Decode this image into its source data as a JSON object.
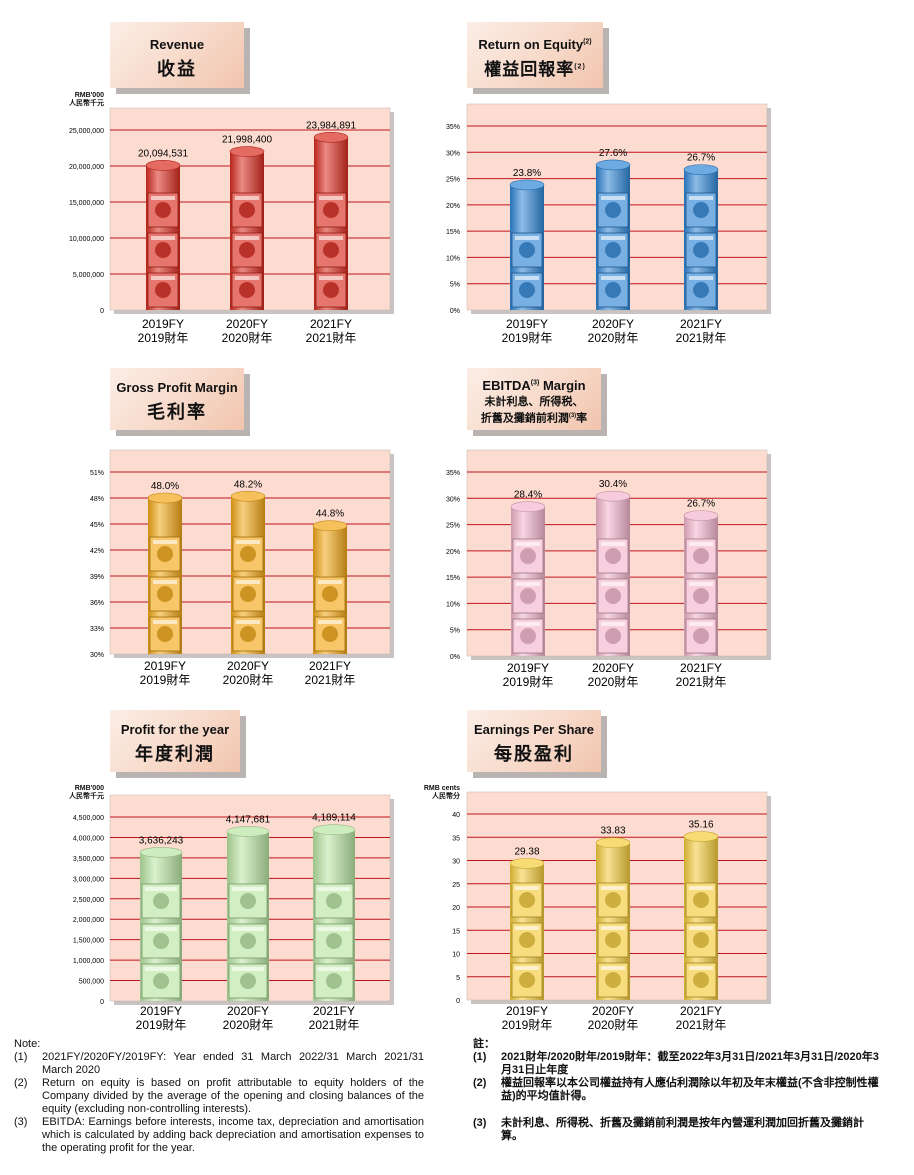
{
  "charts": [
    {
      "key": "revenue",
      "title_en": "Revenue",
      "title_zh": "收益",
      "unit": [
        "RMB'000",
        "人民幣千元"
      ],
      "y_tick_labels": [
        "0",
        "5,000,000",
        "10,000,000",
        "15,000,000",
        "20,000,000",
        "25,000,000"
      ],
      "value_labels": [
        "20,094,531",
        "21,998,400",
        "23,984,891"
      ],
      "cylinder_color": "#d92b1f",
      "product_icon": "candy-box-icon"
    },
    {
      "key": "roe",
      "title_en": "Return on Equity",
      "title_en_sup": "(2)",
      "title_zh": "權益回報率",
      "title_zh_sup": "(2)",
      "y_tick_labels": [
        "0%",
        "5%",
        "10%",
        "15%",
        "20%",
        "25%",
        "30%",
        "35%"
      ],
      "value_labels": [
        "23.8%",
        "27.6%",
        "26.7%"
      ],
      "cylinder_color": "#2f86d6",
      "product_icon": "snack-bag-icon"
    },
    {
      "key": "gpm",
      "title_en": "Gross Profit Margin",
      "title_zh": "毛利率",
      "y_tick_labels": [
        "30%",
        "33%",
        "36%",
        "39%",
        "42%",
        "45%",
        "48%",
        "51%"
      ],
      "value_labels": [
        "48.0%",
        "48.2%",
        "44.8%"
      ],
      "cylinder_color": "#f2a716",
      "product_icon": "candy-bag-icon"
    },
    {
      "key": "ebitda",
      "title_en": "EBITDA",
      "title_en_sup": "(3)",
      "title_en_after": " Margin",
      "title_zh_line1": "未計利息、所得税、",
      "title_zh_line2": "折舊及攤銷前利潤",
      "title_zh_sup": "(3)",
      "title_zh_after": "率",
      "y_tick_labels": [
        "0%",
        "5%",
        "10%",
        "15%",
        "20%",
        "25%",
        "30%",
        "35%"
      ],
      "value_labels": [
        "28.4%",
        "30.4%",
        "26.7%"
      ],
      "cylinder_color": "#f2b5cc",
      "product_icon": "marshmallow-bag-icon"
    },
    {
      "key": "profit",
      "title_en": "Profit for the year",
      "title_zh": "年度利潤",
      "unit": [
        "RMB'000",
        "人民幣千元"
      ],
      "y_tick_labels": [
        "0",
        "500,000",
        "1,000,000",
        "1,500,000",
        "2,000,000",
        "2,500,000",
        "3,000,000",
        "3,500,000",
        "4,000,000",
        "4,500,000"
      ],
      "value_labels": [
        "3,636,243",
        "4,147,681",
        "4,189,114"
      ],
      "cylinder_color": "#b9e5a3",
      "product_icon": "rice-roll-box-icon"
    },
    {
      "key": "eps",
      "title_en": "Earnings Per Share",
      "title_zh": "每股盈利",
      "unit": [
        "RMB cents",
        "人民幣分"
      ],
      "y_tick_labels": [
        "0",
        "5",
        "10",
        "15",
        "20",
        "25",
        "30",
        "35",
        "40"
      ],
      "value_labels": [
        "29.38",
        "33.83",
        "35.16"
      ],
      "cylinder_color": "#f4cb3a",
      "product_icon": "milk-can-icon"
    }
  ],
  "categories": [
    {
      "en": "2019FY",
      "zh": "2019財年"
    },
    {
      "en": "2020FY",
      "zh": "2020財年"
    },
    {
      "en": "2021FY",
      "zh": "2021財年"
    }
  ],
  "chart_data": [
    {
      "type": "bar",
      "title": "Revenue",
      "categories": [
        "2019FY",
        "2020FY",
        "2021FY"
      ],
      "values": [
        20094531,
        21998400,
        23984891
      ],
      "ylabel": "RMB'000",
      "ylim": [
        0,
        25000000
      ],
      "grid": true
    },
    {
      "type": "bar",
      "title": "Return on Equity",
      "categories": [
        "2019FY",
        "2020FY",
        "2021FY"
      ],
      "values": [
        23.8,
        27.6,
        26.7
      ],
      "ylabel": "%",
      "ylim": [
        0,
        35
      ],
      "grid": true
    },
    {
      "type": "bar",
      "title": "Gross Profit Margin",
      "categories": [
        "2019FY",
        "2020FY",
        "2021FY"
      ],
      "values": [
        48.0,
        48.2,
        44.8
      ],
      "ylabel": "%",
      "ylim": [
        30,
        51
      ],
      "grid": true
    },
    {
      "type": "bar",
      "title": "EBITDA Margin",
      "categories": [
        "2019FY",
        "2020FY",
        "2021FY"
      ],
      "values": [
        28.4,
        30.4,
        26.7
      ],
      "ylabel": "%",
      "ylim": [
        0,
        35
      ],
      "grid": true
    },
    {
      "type": "bar",
      "title": "Profit for the year",
      "categories": [
        "2019FY",
        "2020FY",
        "2021FY"
      ],
      "values": [
        3636243,
        4147681,
        4189114
      ],
      "ylabel": "RMB'000",
      "ylim": [
        0,
        4500000
      ],
      "grid": true
    },
    {
      "type": "bar",
      "title": "Earnings Per Share",
      "categories": [
        "2019FY",
        "2020FY",
        "2021FY"
      ],
      "values": [
        29.38,
        33.83,
        35.16
      ],
      "ylabel": "RMB cents",
      "ylim": [
        0,
        40
      ],
      "grid": true
    }
  ],
  "notes_en": {
    "heading": "Note:",
    "items": [
      {
        "num": "(1)",
        "text": "2021FY/2020FY/2019FY: Year ended 31 March 2022/31 March 2021/31 March 2020"
      },
      {
        "num": "(2)",
        "text": "Return on equity is based on profit attributable to equity holders of the Company divided by the average of the opening and closing balances of the equity (excluding non-controlling interests)."
      },
      {
        "num": "(3)",
        "text": "EBITDA: Earnings before interests, income tax, depreciation and amortisation which is calculated by adding back depreciation and amortisation expenses to the operating profit for the year."
      }
    ]
  },
  "notes_zh": {
    "heading": "註：",
    "items": [
      {
        "num": "(1)",
        "text": "2021財年/2020財年/2019財年：截至2022年3月31日/2021年3月31日/2020年3月31日止年度"
      },
      {
        "num": "(2)",
        "text": "權益回報率以本公司權益持有人應佔利潤除以年初及年末權益(不含非控制性權益)的平均值計得。"
      },
      {
        "num": "(3)",
        "text": "未計利息、所得税、折舊及攤銷前利潤是按年內營運利潤加回折舊及攤銷計算。"
      }
    ]
  },
  "colors": {
    "plot_bg": "#fcdcd0",
    "grid": "#c0141c",
    "axis_text": "#000000"
  }
}
